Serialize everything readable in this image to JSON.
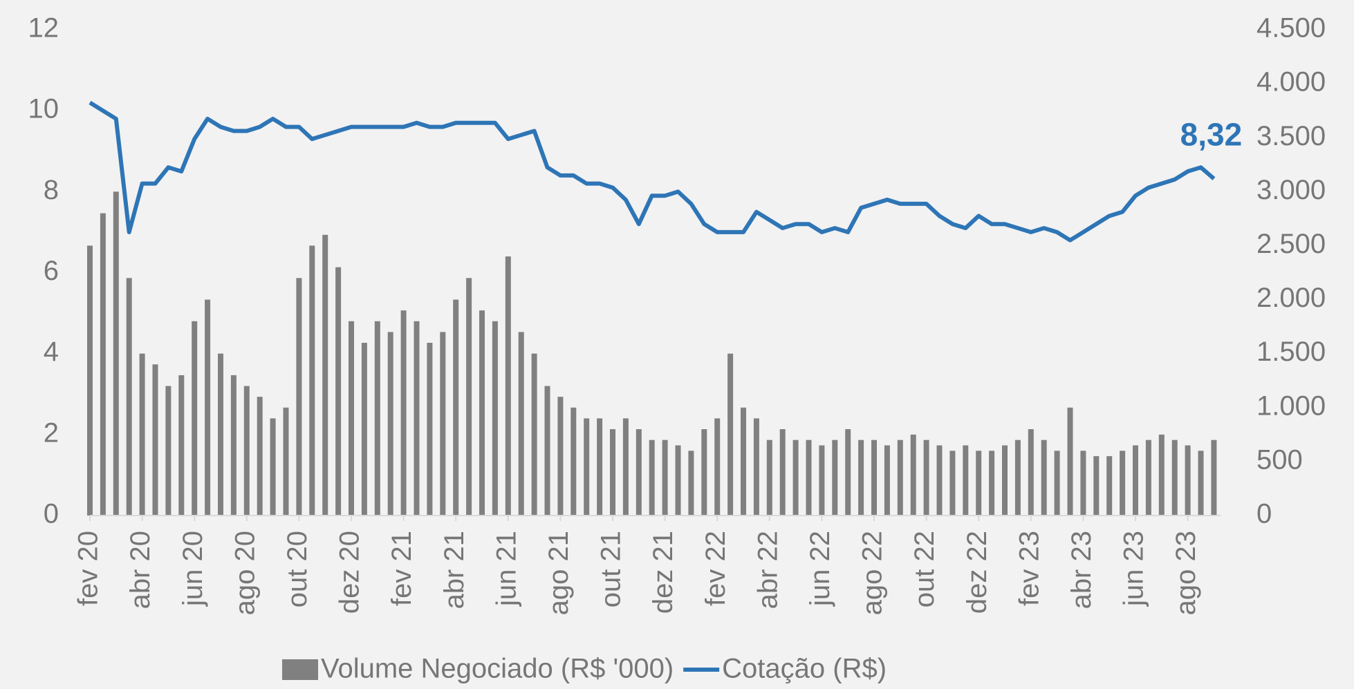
{
  "chart_data": {
    "type": "combo",
    "categories": [
      "fev 20",
      null,
      null,
      null,
      "abr 20",
      null,
      null,
      null,
      "jun 20",
      null,
      null,
      null,
      "ago 20",
      null,
      null,
      null,
      "out 20",
      null,
      null,
      null,
      "dez 20",
      null,
      null,
      null,
      "fev 21",
      null,
      null,
      null,
      "abr 21",
      null,
      null,
      null,
      "jun 21",
      null,
      null,
      null,
      "ago 21",
      null,
      null,
      null,
      "out 21",
      null,
      null,
      null,
      "dez 21",
      null,
      null,
      null,
      "fev 22",
      null,
      null,
      null,
      "abr 22",
      null,
      null,
      null,
      "jun 22",
      null,
      null,
      null,
      "ago 22",
      null,
      null,
      null,
      "out 22",
      null,
      null,
      null,
      "dez 22",
      null,
      null,
      null,
      "fev 23",
      null,
      null,
      null,
      "abr 23",
      null,
      null,
      null,
      "jun 23",
      null,
      null,
      null,
      "ago 23",
      null,
      null
    ],
    "series": [
      {
        "name": "Volume Negociado (R$ '000)",
        "type": "bar",
        "axis": "y2",
        "color": "#808080",
        "values": [
          2500,
          2800,
          3000,
          2200,
          1500,
          1400,
          1200,
          1300,
          1800,
          2000,
          1500,
          1300,
          1200,
          1100,
          900,
          1000,
          2200,
          2500,
          2600,
          2300,
          1800,
          1600,
          1800,
          1700,
          1900,
          1800,
          1600,
          1700,
          2000,
          2200,
          1900,
          1800,
          2400,
          1700,
          1500,
          1200,
          1100,
          1000,
          900,
          900,
          800,
          900,
          800,
          700,
          700,
          650,
          600,
          800,
          900,
          1500,
          1000,
          900,
          700,
          800,
          700,
          700,
          650,
          700,
          800,
          700,
          700,
          650,
          700,
          750,
          700,
          650,
          600,
          650,
          600,
          600,
          650,
          700,
          800,
          700,
          600,
          1000,
          600,
          550,
          550,
          600,
          650,
          700,
          750,
          700,
          650,
          600,
          700
        ]
      },
      {
        "name": "Cotação (R$)",
        "type": "line",
        "axis": "y",
        "color": "#2e75b6",
        "values": [
          10.2,
          10.0,
          9.8,
          7.0,
          8.2,
          8.2,
          8.6,
          8.5,
          9.3,
          9.8,
          9.6,
          9.5,
          9.5,
          9.6,
          9.8,
          9.6,
          9.6,
          9.3,
          9.4,
          9.5,
          9.6,
          9.6,
          9.6,
          9.6,
          9.6,
          9.7,
          9.6,
          9.6,
          9.7,
          9.7,
          9.7,
          9.7,
          9.3,
          9.4,
          9.5,
          8.6,
          8.4,
          8.4,
          8.2,
          8.2,
          8.1,
          7.8,
          7.2,
          7.9,
          7.9,
          8.0,
          7.7,
          7.2,
          7.0,
          7.0,
          7.0,
          7.5,
          7.3,
          7.1,
          7.2,
          7.2,
          7.0,
          7.1,
          7.0,
          7.6,
          7.7,
          7.8,
          7.7,
          7.7,
          7.7,
          7.4,
          7.2,
          7.1,
          7.4,
          7.2,
          7.2,
          7.1,
          7.0,
          7.1,
          7.0,
          6.8,
          7.0,
          7.2,
          7.4,
          7.5,
          7.9,
          8.1,
          8.2,
          8.3,
          8.5,
          8.6,
          8.32
        ],
        "value_labels": [
          null,
          null,
          null,
          null,
          null,
          null,
          null,
          null,
          null,
          null,
          null,
          null,
          null,
          null,
          null,
          null,
          null,
          null,
          null,
          null,
          null,
          null,
          null,
          null,
          null,
          null,
          null,
          null,
          null,
          null,
          null,
          null,
          null,
          null,
          null,
          null,
          null,
          null,
          null,
          null,
          null,
          null,
          null,
          null,
          null,
          null,
          null,
          null,
          null,
          null,
          null,
          null,
          null,
          null,
          null,
          null,
          null,
          null,
          null,
          null,
          null,
          null,
          null,
          null,
          null,
          null,
          null,
          null,
          null,
          null,
          null,
          null,
          null,
          null,
          null,
          null,
          null,
          null,
          null,
          null,
          null,
          null,
          null,
          null,
          null,
          null,
          "8,32"
        ]
      }
    ],
    "ylim": [
      0,
      12
    ],
    "yticks": [
      0,
      2,
      4,
      6,
      8,
      10,
      12
    ],
    "y2lim": [
      0,
      4500
    ],
    "y2ticks": [
      0,
      500,
      {
        "value": 1000,
        "label": "1.000"
      },
      {
        "value": 1500,
        "label": "1.500"
      },
      {
        "value": 2000,
        "label": "2.000"
      },
      {
        "value": 2500,
        "label": "2.500"
      },
      {
        "value": 3000,
        "label": "3.000"
      },
      {
        "value": 3500,
        "label": "3.500"
      },
      {
        "value": 4000,
        "label": "4.000"
      },
      {
        "value": 4500,
        "label": "4.500"
      }
    ],
    "grid": false,
    "legend": "bottom"
  }
}
